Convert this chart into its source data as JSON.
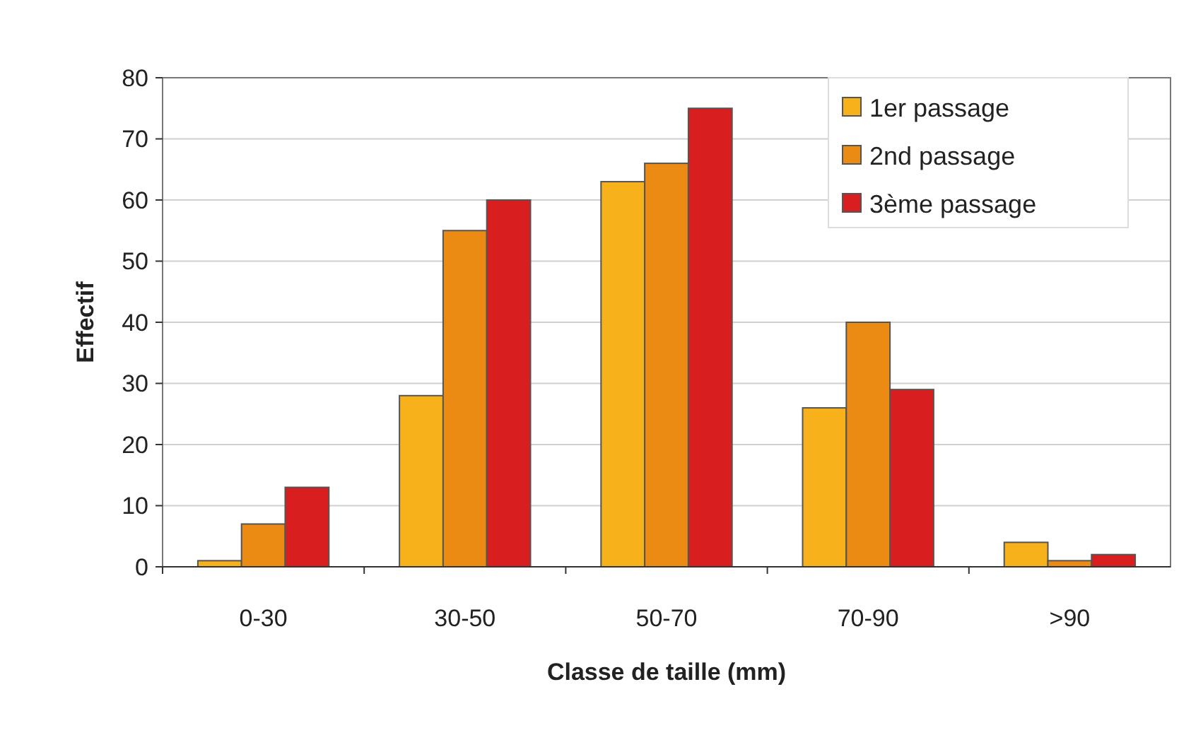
{
  "chart_data": {
    "type": "bar",
    "xlabel": "Classe de taille (mm)",
    "ylabel": "Effectif",
    "categories": [
      "0-30",
      "30-50",
      "50-70",
      "70-90",
      ">90"
    ],
    "series": [
      {
        "name": "1er passage",
        "color": "#f7b11a",
        "values": [
          1,
          28,
          63,
          26,
          4
        ]
      },
      {
        "name": "2nd passage",
        "color": "#eb8b14",
        "values": [
          7,
          55,
          66,
          40,
          1
        ]
      },
      {
        "name": "3ème passage",
        "color": "#d81e1e",
        "values": [
          13,
          60,
          75,
          29,
          2
        ]
      }
    ],
    "ylim": [
      0,
      80
    ],
    "yticks": [
      0,
      10,
      20,
      30,
      40,
      50,
      60,
      70,
      80
    ],
    "grid": "y",
    "legend": "top right"
  }
}
